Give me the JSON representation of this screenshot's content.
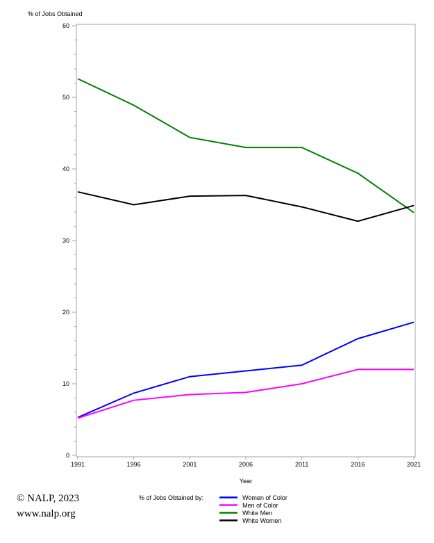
{
  "page": {
    "footer": {
      "copyright": "© NALP, 2023",
      "website": "www.nalp.org"
    }
  },
  "colors": {
    "axis": "#a3a3a3",
    "text": "#000000",
    "background": "#ffffff"
  },
  "chart_data": {
    "type": "line",
    "title": "% of Jobs Obtained",
    "ylabel": "% of Jobs Obtained",
    "xlabel": "Year",
    "legend_title": "% of Jobs Obtained by:",
    "legend_position": "bottom",
    "grid": false,
    "x": [
      1991,
      1996,
      2001,
      2006,
      2011,
      2016,
      2021
    ],
    "xlim": [
      1991,
      2021
    ],
    "ylim": [
      0,
      60
    ],
    "ytick_major": 10,
    "ytick_minor": 2,
    "series": [
      {
        "name": "Women of Color",
        "color": "#0000ff",
        "values": [
          5.3,
          8.7,
          11.0,
          11.8,
          12.6,
          16.3,
          18.6
        ]
      },
      {
        "name": "Men of Color",
        "color": "#ff00ff",
        "values": [
          5.2,
          7.7,
          8.5,
          8.8,
          10.0,
          12.0,
          12.0
        ]
      },
      {
        "name": "White Men",
        "color": "#008000",
        "values": [
          52.6,
          48.9,
          44.4,
          43.0,
          43.0,
          39.4,
          33.9
        ]
      },
      {
        "name": "White Women",
        "color": "#000000",
        "values": [
          36.8,
          35.0,
          36.2,
          36.3,
          34.7,
          32.7,
          34.9
        ]
      }
    ]
  }
}
